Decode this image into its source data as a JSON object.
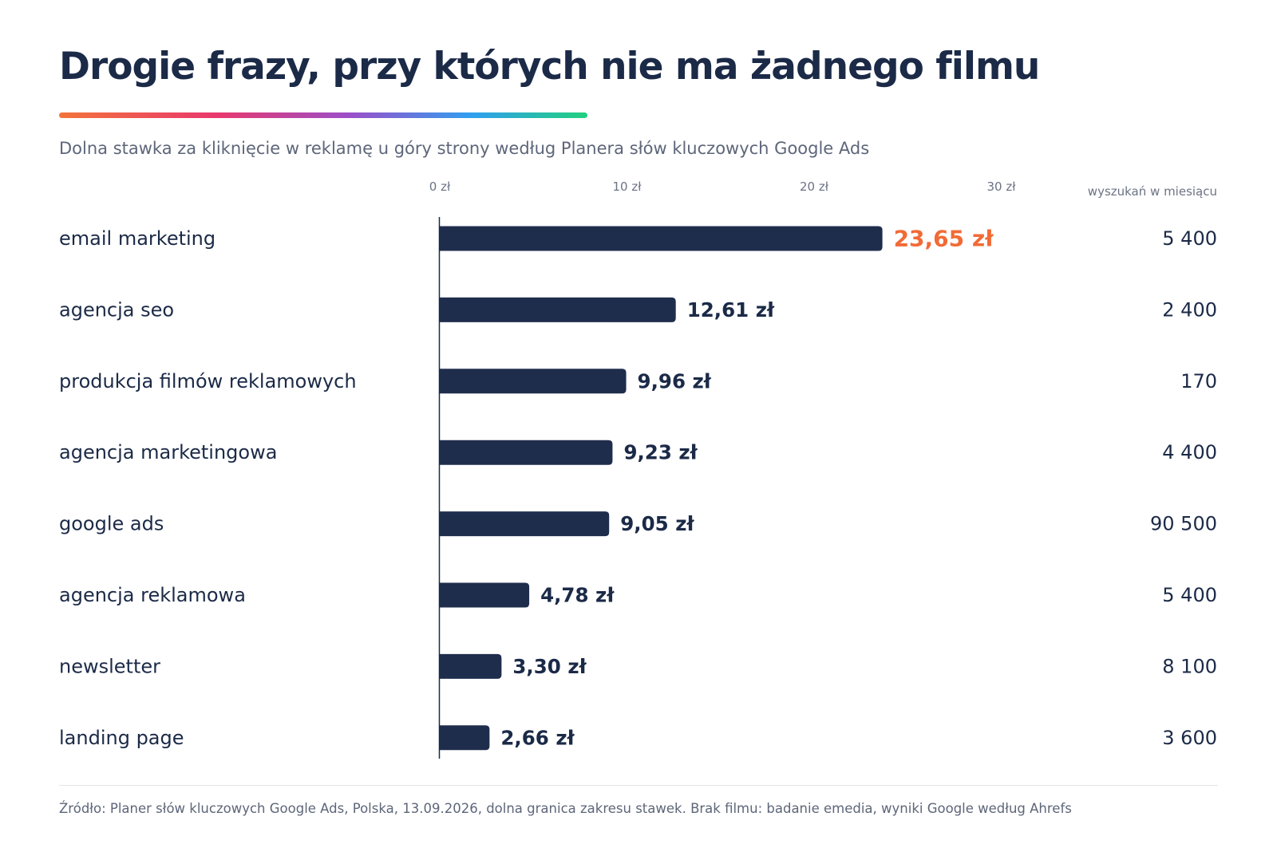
{
  "title": "Drogie frazy, przy których nie ma żadnego filmu",
  "subtitle": "Dolna stawka za kliknięcie w reklamę u góry strony według Planera słów kluczowych Google Ads",
  "footer": "Źródło: Planer słów kluczowych Google Ads, Polska, 13.09.2026, dolna granica zakresu stawek. Brak filmu: badanie emedia, wyniki Google według Ahrefs",
  "colors": {
    "bar": "#1f2d4d",
    "highlight": "#f26a35",
    "text": "#1b2a47",
    "muted": "#6b7385",
    "axis": "#1b2a47"
  },
  "chart_data": {
    "type": "bar",
    "orientation": "horizontal",
    "x_ticks": [
      "0 zł",
      "10 zł",
      "20 zł",
      "30 zł"
    ],
    "x_tick_values": [
      0,
      10,
      20,
      30
    ],
    "xlim": [
      0,
      30
    ],
    "grid": false,
    "right_column_header": "wyszukań w miesiącu",
    "categories": [
      "email marketing",
      "agencja seo",
      "produkcja filmów reklamowych",
      "agencja marketingowa",
      "google ads",
      "agencja reklamowa",
      "newsletter",
      "landing page"
    ],
    "values": [
      23.65,
      12.61,
      9.96,
      9.23,
      9.05,
      4.78,
      3.3,
      2.66
    ],
    "value_labels": [
      "23,65 zł",
      "12,61 zł",
      "9,96 zł",
      "9,23 zł",
      "9,05 zł",
      "4,78 zł",
      "3,30 zł",
      "2,66 zł"
    ],
    "highlighted": [
      true,
      false,
      false,
      false,
      false,
      false,
      false,
      false
    ],
    "monthly_searches": [
      "5 400",
      "2 400",
      "170",
      "4 400",
      "90 500",
      "5 400",
      "8 100",
      "3 600"
    ]
  }
}
